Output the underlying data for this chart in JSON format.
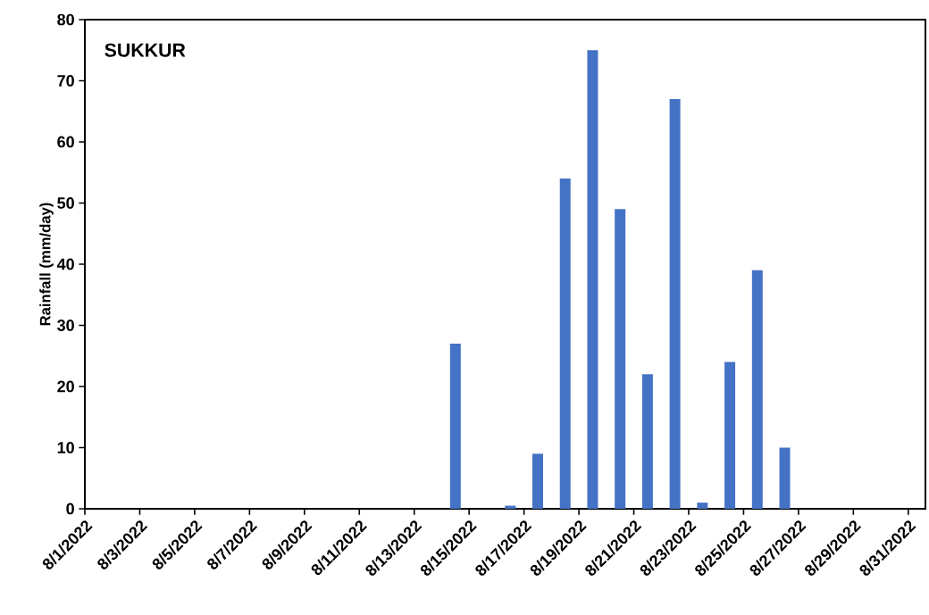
{
  "chart_data": {
    "type": "bar",
    "title": "SUKKUR",
    "ylabel": "Rainfall (mm/day)",
    "x": [
      "2022-08-14T12:00",
      "2022-08-16T12:00",
      "2022-08-17T12:00",
      "2022-08-18T12:00",
      "2022-08-19T12:00",
      "2022-08-20T12:00",
      "2022-08-21T12:00",
      "2022-08-22T12:00",
      "2022-08-23T12:00",
      "2022-08-24T12:00",
      "2022-08-25T12:00",
      "2022-08-26T12:00"
    ],
    "values": [
      27,
      0.5,
      9,
      54,
      75,
      49,
      22,
      67,
      1,
      24,
      39,
      10
    ],
    "color": "#4472c4",
    "xlim": [
      "2022-08-01",
      "2022-08-31T15:00"
    ],
    "xticks": [
      {
        "value": "2022-08-01",
        "label": "8/1/2022"
      },
      {
        "value": "2022-08-03",
        "label": "8/3/2022"
      },
      {
        "value": "2022-08-05",
        "label": "8/5/2022"
      },
      {
        "value": "2022-08-07",
        "label": "8/7/2022"
      },
      {
        "value": "2022-08-09",
        "label": "8/9/2022"
      },
      {
        "value": "2022-08-11",
        "label": "8/11/2022"
      },
      {
        "value": "2022-08-13",
        "label": "8/13/2022"
      },
      {
        "value": "2022-08-15",
        "label": "8/15/2022"
      },
      {
        "value": "2022-08-17",
        "label": "8/17/2022"
      },
      {
        "value": "2022-08-19",
        "label": "8/19/2022"
      },
      {
        "value": "2022-08-21",
        "label": "8/21/2022"
      },
      {
        "value": "2022-08-23",
        "label": "8/23/2022"
      },
      {
        "value": "2022-08-25",
        "label": "8/25/2022"
      },
      {
        "value": "2022-08-27",
        "label": "8/27/2022"
      },
      {
        "value": "2022-08-29",
        "label": "8/29/2022"
      },
      {
        "value": "2022-08-31",
        "label": "8/31/2022"
      }
    ],
    "ylim": [
      0,
      80
    ],
    "yticks": [
      0,
      10,
      20,
      30,
      40,
      50,
      60,
      70,
      80
    ]
  }
}
